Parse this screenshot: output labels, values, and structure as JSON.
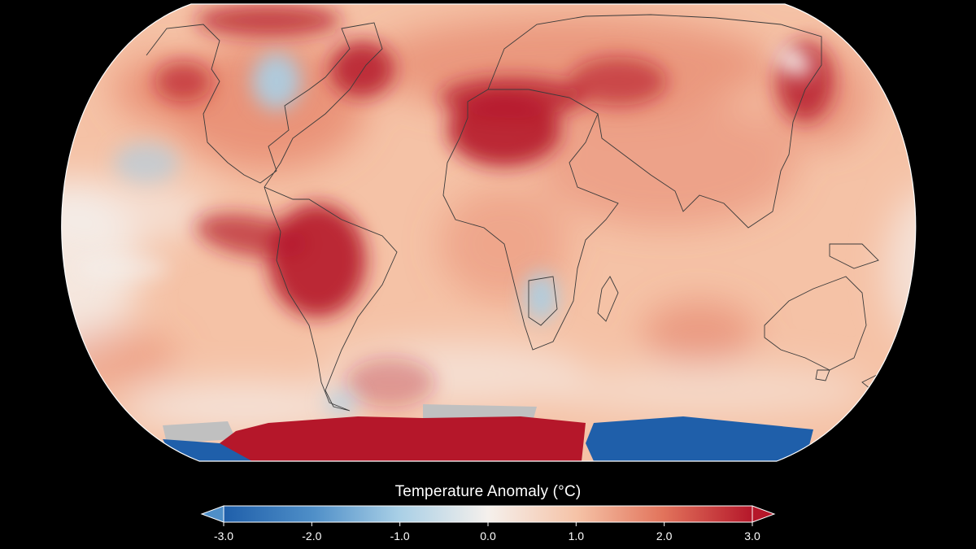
{
  "legend": {
    "title": "Temperature Anomaly (°C)",
    "min": -3.0,
    "max": 3.0,
    "ticks": [
      {
        "value": -3.0,
        "label": "-3.0"
      },
      {
        "value": -2.0,
        "label": "-2.0"
      },
      {
        "value": -1.0,
        "label": "-1.0"
      },
      {
        "value": 0.0,
        "label": "0.0"
      },
      {
        "value": 1.0,
        "label": "1.0"
      },
      {
        "value": 2.0,
        "label": "2.0"
      },
      {
        "value": 3.0,
        "label": "3.0"
      }
    ],
    "colors": {
      "cold_extreme": "#1f5faa",
      "cold": "#4f8fc8",
      "cool": "#a8cfe6",
      "neutral": "#f5f0ec",
      "warm": "#f5c2a6",
      "hot": "#e2745c",
      "hot_extreme": "#b5172a",
      "no_data": "#c0c0c0"
    },
    "extends": [
      "low",
      "high"
    ]
  },
  "map": {
    "projection": "robinson",
    "has_coastlines": true
  }
}
